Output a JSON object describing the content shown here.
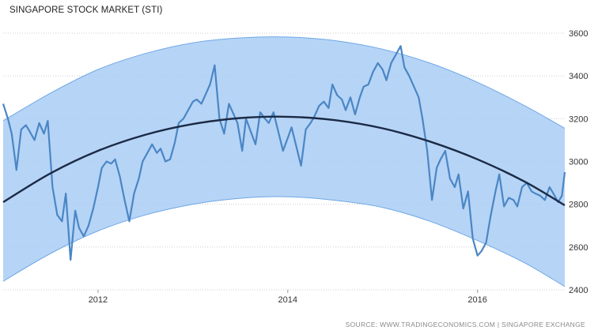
{
  "chart_data": {
    "type": "line",
    "title": "SINGAPORE STOCK MARKET (STI)",
    "source": "SOURCE: WWW.TRADINGECONOMICS.COM | SINGAPORE EXCHANGE",
    "xlabel": "",
    "ylabel": "",
    "xlim": [
      2011.0,
      2016.92
    ],
    "ylim": [
      2400,
      3600
    ],
    "y_axis_position": "right",
    "x_ticks": [
      {
        "value": 2012,
        "label": "2012"
      },
      {
        "value": 2014,
        "label": "2014"
      },
      {
        "value": 2016,
        "label": "2016"
      }
    ],
    "y_ticks": [
      {
        "value": 2400,
        "label": "2400"
      },
      {
        "value": 2600,
        "label": "2600"
      },
      {
        "value": 2800,
        "label": "2800"
      },
      {
        "value": 3000,
        "label": "3000"
      },
      {
        "value": 3200,
        "label": "3200"
      },
      {
        "value": 3400,
        "label": "3400"
      },
      {
        "value": 3600,
        "label": "3600"
      }
    ],
    "grid": "horizontal dotted",
    "legend": "none",
    "colors": {
      "series": "#4a86c5",
      "trend": "#1b2a45",
      "band_fill": "#a9cdf5",
      "band_edge": "#6ea8e6",
      "grid": "#cccccc"
    },
    "series": [
      {
        "x": [
          2011.0,
          2011.05,
          2011.09,
          2011.14,
          2011.19,
          2011.24,
          2011.28,
          2011.33,
          2011.38,
          2011.43,
          2011.47,
          2011.52,
          2011.57,
          2011.62,
          2011.66,
          2011.71,
          2011.76,
          2011.8,
          2011.85,
          2011.9,
          2011.95,
          2012.0,
          2012.04,
          2012.09,
          2012.14,
          2012.18,
          2012.23,
          2012.28,
          2012.33,
          2012.38,
          2012.43,
          2012.47,
          2012.52,
          2012.57,
          2012.62,
          2012.66,
          2012.71,
          2012.76,
          2012.81,
          2012.85,
          2012.9,
          2012.95,
          2013.0,
          2013.04,
          2013.09,
          2013.14,
          2013.18,
          2013.23,
          2013.28,
          2013.33,
          2013.38,
          2013.42,
          2013.47,
          2013.52,
          2013.56,
          2013.61,
          2013.66,
          2013.71,
          2013.76,
          2013.8,
          2013.85,
          2013.9,
          2013.95,
          2014.0,
          2014.04,
          2014.09,
          2014.14,
          2014.19,
          2014.24,
          2014.28,
          2014.33,
          2014.38,
          2014.43,
          2014.47,
          2014.52,
          2014.57,
          2014.61,
          2014.66,
          2014.71,
          2014.76,
          2014.8,
          2014.85,
          2014.9,
          2014.95,
          2015.0,
          2015.04,
          2015.09,
          2015.14,
          2015.19,
          2015.23,
          2015.28,
          2015.33,
          2015.38,
          2015.42,
          2015.47,
          2015.52,
          2015.57,
          2015.61,
          2015.66,
          2015.71,
          2015.76,
          2015.8,
          2015.85,
          2015.9,
          2015.95,
          2016.0,
          2016.04,
          2016.09,
          2016.14,
          2016.19,
          2016.23,
          2016.28,
          2016.33,
          2016.38,
          2016.42,
          2016.47,
          2016.52,
          2016.57,
          2016.61,
          2016.66,
          2016.71,
          2016.76,
          2016.8,
          2016.85,
          2016.89,
          2016.92
        ],
        "y": [
          3270,
          3200,
          3130,
          2960,
          3150,
          3170,
          3140,
          3100,
          3180,
          3130,
          3190,
          2880,
          2750,
          2720,
          2850,
          2540,
          2770,
          2690,
          2650,
          2700,
          2780,
          2880,
          2970,
          3000,
          2990,
          3010,
          2930,
          2820,
          2720,
          2850,
          2920,
          3000,
          3040,
          3080,
          3040,
          3060,
          3000,
          3010,
          3090,
          3180,
          3200,
          3240,
          3280,
          3290,
          3270,
          3320,
          3360,
          3450,
          3200,
          3130,
          3270,
          3230,
          3180,
          3050,
          3200,
          3140,
          3080,
          3230,
          3200,
          3180,
          3230,
          3140,
          3050,
          3110,
          3160,
          3070,
          2980,
          3150,
          3180,
          3210,
          3260,
          3280,
          3250,
          3360,
          3310,
          3290,
          3240,
          3300,
          3220,
          3300,
          3350,
          3360,
          3420,
          3460,
          3430,
          3380,
          3460,
          3500,
          3540,
          3440,
          3400,
          3350,
          3300,
          3200,
          3050,
          2820,
          2970,
          3010,
          3050,
          2920,
          2880,
          2940,
          2780,
          2860,
          2640,
          2560,
          2580,
          2620,
          2750,
          2860,
          2940,
          2790,
          2830,
          2820,
          2790,
          2880,
          2900,
          2860,
          2850,
          2840,
          2820,
          2880,
          2850,
          2810,
          2840,
          2950
        ]
      }
    ],
    "trend": {
      "x": [
        2011.0,
        2011.5,
        2012.0,
        2012.5,
        2013.0,
        2013.5,
        2014.0,
        2014.5,
        2015.0,
        2015.5,
        2016.0,
        2016.5,
        2016.92
      ],
      "y": [
        2810,
        2945,
        3050,
        3125,
        3175,
        3203,
        3209,
        3193,
        3155,
        3093,
        3010,
        2905,
        2795
      ]
    },
    "band": {
      "upper": [
        3190,
        3320,
        3430,
        3505,
        3555,
        3578,
        3582,
        3565,
        3525,
        3460,
        3370,
        3260,
        3155
      ],
      "lower": [
        2440,
        2570,
        2675,
        2750,
        2800,
        2828,
        2835,
        2818,
        2785,
        2720,
        2630,
        2525,
        2415
      ]
    }
  }
}
